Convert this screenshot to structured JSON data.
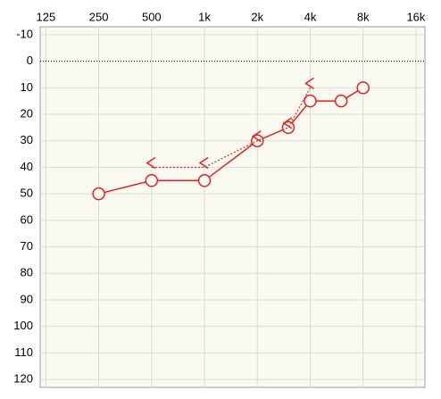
{
  "chart_data": {
    "type": "audiogram",
    "xlim": [
      116,
      18000
    ],
    "log_x": true,
    "xticks": [
      {
        "value": 125,
        "label": "125"
      },
      {
        "value": 250,
        "label": "250"
      },
      {
        "value": 500,
        "label": "500"
      },
      {
        "value": 1000,
        "label": "1k"
      },
      {
        "value": 2000,
        "label": "2k"
      },
      {
        "value": 4000,
        "label": "4k"
      },
      {
        "value": 8000,
        "label": "8k"
      },
      {
        "value": 16000,
        "label": "16k"
      }
    ],
    "ylim": [
      -13,
      123
    ],
    "y_inverted": true,
    "yticks": [
      -10,
      0,
      10,
      20,
      30,
      40,
      50,
      60,
      70,
      80,
      90,
      100,
      110,
      120
    ],
    "grid": true,
    "series": [
      {
        "marker": "circle",
        "line": "solid",
        "color": "#e8201c",
        "x": [
          250,
          500,
          1000,
          2000,
          3000,
          4000,
          6000,
          8000
        ],
        "values": [
          50,
          45,
          45,
          30,
          25,
          15,
          15,
          10
        ]
      },
      {
        "marker": "less-than",
        "line": "dotted",
        "color": "#e8201c",
        "x": [
          500,
          1000,
          2000,
          3000,
          4000
        ],
        "values": [
          40,
          40,
          30,
          25,
          10
        ]
      }
    ]
  }
}
